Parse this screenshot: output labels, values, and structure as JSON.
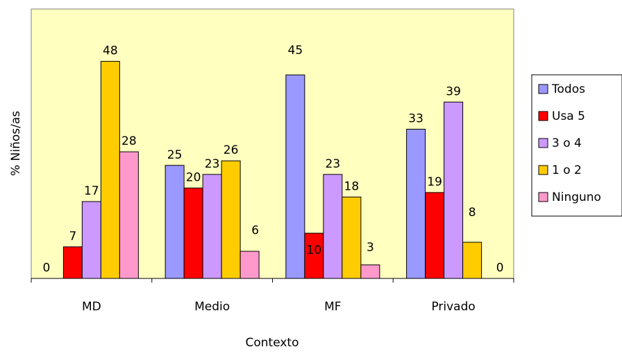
{
  "chart_data": {
    "type": "bar",
    "title": "",
    "xlabel": "Contexto",
    "ylabel": "% Niños/as",
    "categories": [
      "MD",
      "Medio",
      "MF",
      "Privado"
    ],
    "ylim": [
      0,
      50
    ],
    "grid": false,
    "legend_position": "right",
    "plot_background": "#ffffc0",
    "series": [
      {
        "name": "Todos",
        "color": "#9999ff",
        "values": [
          0,
          25,
          45,
          33
        ]
      },
      {
        "name": "Usa 5",
        "color": "#ff0000",
        "values": [
          7,
          20,
          10,
          19
        ]
      },
      {
        "name": "3 o 4",
        "color": "#cc99ff",
        "values": [
          17,
          23,
          23,
          39
        ]
      },
      {
        "name": "1 o 2",
        "color": "#ffcc00",
        "values": [
          48,
          26,
          18,
          8
        ]
      },
      {
        "name": "Ninguno",
        "color": "#ff99cc",
        "values": [
          28,
          6,
          3,
          0
        ]
      }
    ],
    "data_labels": [
      [
        "0",
        "7",
        "17",
        "48",
        "28"
      ],
      [
        "25",
        "20",
        "23",
        "26",
        "6"
      ],
      [
        "45",
        "10",
        "23",
        "18",
        "3"
      ],
      [
        "33",
        "19",
        "39",
        "8",
        "0"
      ]
    ]
  }
}
